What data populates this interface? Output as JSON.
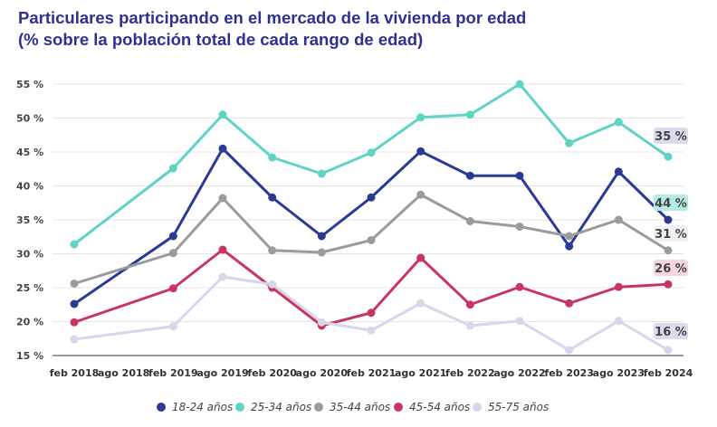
{
  "chart_data": {
    "type": "line",
    "title": "Particulares participando en el mercado de la vivienda por edad",
    "subtitle": "(% sobre la población total de cada rango de edad)",
    "categories": [
      "feb 2018",
      "ago 2018",
      "feb 2019",
      "ago 2019",
      "feb 2020",
      "ago 2020",
      "feb 2021",
      "ago 2021",
      "feb 2022",
      "ago 2022",
      "feb 2023",
      "ago 2023",
      "feb 2024"
    ],
    "yticks": [
      "15 %",
      "20 %",
      "25 %",
      "30 %",
      "35 %",
      "40 %",
      "45 %",
      "50 %",
      "55 %"
    ],
    "ylim": [
      15,
      55
    ],
    "grid": true,
    "legend_position": "bottom",
    "series": [
      {
        "name": "18-24 años",
        "color": "#2b3a94",
        "end_label": "35 %",
        "label_bg": "#dcdcef",
        "values": [
          22.6,
          null,
          32.6,
          45.5,
          38.3,
          32.6,
          38.3,
          45.1,
          41.5,
          41.5,
          31.1,
          42.1,
          35.0
        ]
      },
      {
        "name": "25-34 años",
        "color": "#5fd4c4",
        "end_label": "44 %",
        "label_bg": "#b4ece4",
        "values": [
          31.4,
          null,
          42.6,
          50.5,
          44.2,
          41.8,
          44.9,
          50.1,
          50.5,
          55.0,
          46.3,
          49.4,
          44.3
        ]
      },
      {
        "name": "35-44 años",
        "color": "#9b9b9b",
        "end_label": "31 %",
        "label_bg": "#f0f0f0",
        "values": [
          25.6,
          null,
          30.1,
          38.2,
          30.5,
          30.2,
          32.0,
          38.7,
          34.8,
          34.0,
          32.6,
          35.0,
          30.5
        ]
      },
      {
        "name": "45-54 años",
        "color": "#c8365f",
        "end_label": "26 %",
        "label_bg": "#f6d6de",
        "values": [
          19.9,
          null,
          24.9,
          30.6,
          25.0,
          19.4,
          21.3,
          29.4,
          22.5,
          25.1,
          22.7,
          25.1,
          25.5
        ]
      },
      {
        "name": "55-75 años",
        "color": "#d6d6ec",
        "end_label": "16 %",
        "label_bg": "#dcdcef",
        "values": [
          17.4,
          null,
          19.3,
          26.6,
          25.5,
          19.9,
          18.7,
          22.7,
          19.4,
          20.1,
          15.8,
          20.1,
          15.8
        ]
      }
    ]
  }
}
